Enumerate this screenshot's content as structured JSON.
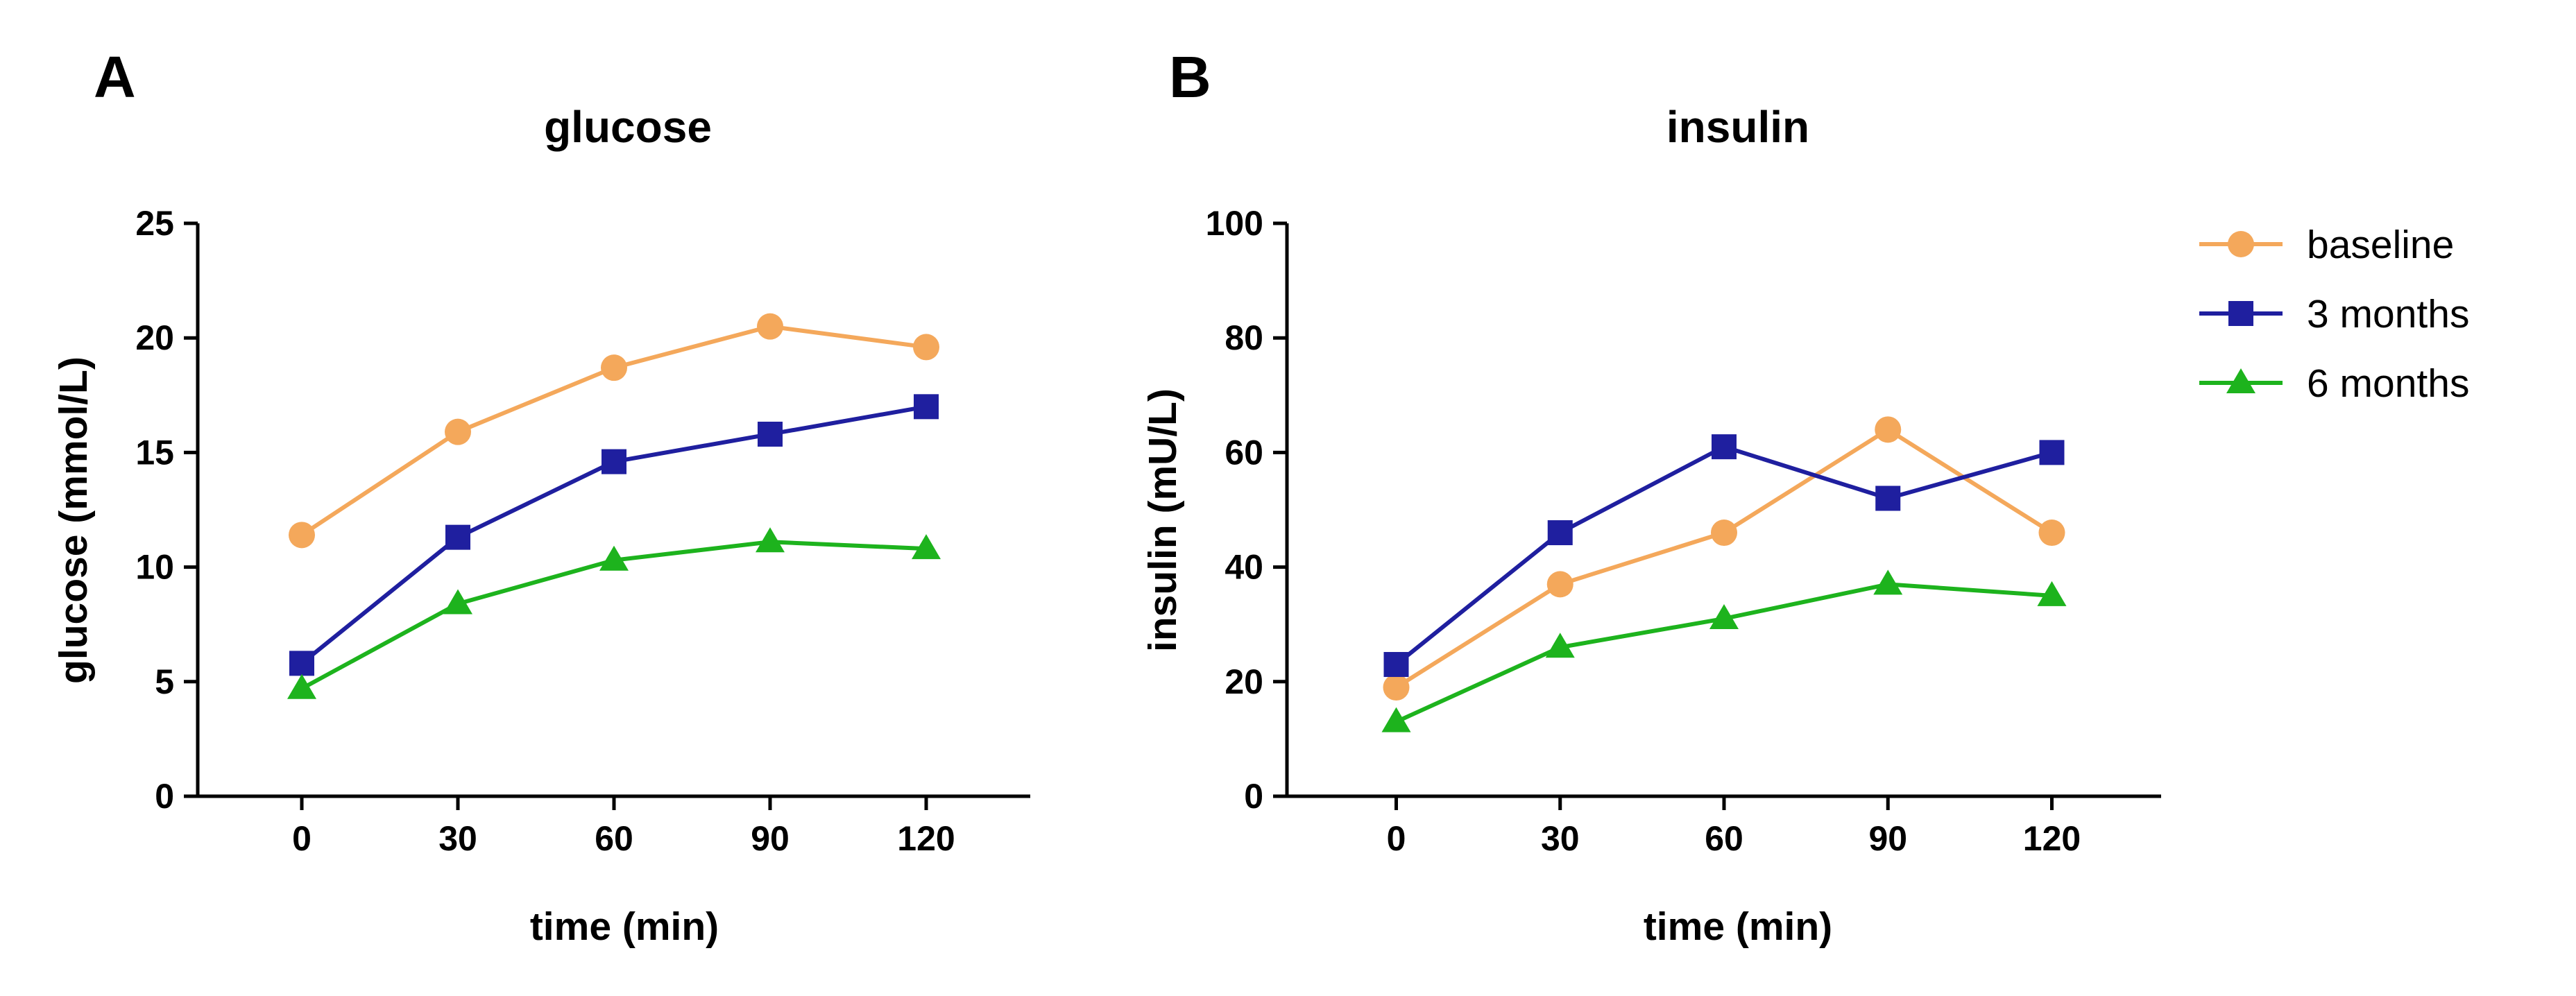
{
  "series_styles": [
    {
      "name": "baseline",
      "color": "#F4A85B",
      "marker": "circle"
    },
    {
      "name": "3 months",
      "color": "#1F1F9F",
      "marker": "square"
    },
    {
      "name": "6 months",
      "color": "#1DB31D",
      "marker": "triangle"
    }
  ],
  "legend": {
    "position": "right",
    "entries": [
      "baseline",
      "3 months",
      "6 months"
    ]
  },
  "chart_data": [
    {
      "panel": "A",
      "type": "line",
      "title": "glucose",
      "xlabel": "time (min)",
      "ylabel": "glucose (mmol/L)",
      "x": [
        0,
        30,
        60,
        90,
        120
      ],
      "xlim": [
        -20,
        140
      ],
      "ylim": [
        0,
        25
      ],
      "yticks": [
        0,
        5,
        10,
        15,
        20,
        25
      ],
      "series": [
        {
          "name": "baseline",
          "values": [
            11.4,
            15.9,
            18.7,
            20.5,
            19.6
          ]
        },
        {
          "name": "3 months",
          "values": [
            5.8,
            11.3,
            14.6,
            15.8,
            17.0
          ]
        },
        {
          "name": "6 months",
          "values": [
            4.7,
            8.4,
            10.3,
            11.1,
            10.8
          ]
        }
      ]
    },
    {
      "panel": "B",
      "type": "line",
      "title": "insulin",
      "xlabel": "time (min)",
      "ylabel": "insulin (mU/L)",
      "x": [
        0,
        30,
        60,
        90,
        120
      ],
      "xlim": [
        -20,
        140
      ],
      "ylim": [
        0,
        100
      ],
      "yticks": [
        0,
        20,
        40,
        60,
        80,
        100
      ],
      "series": [
        {
          "name": "baseline",
          "values": [
            19,
            37,
            46,
            64,
            46
          ]
        },
        {
          "name": "3 months",
          "values": [
            23,
            46,
            61,
            52,
            60
          ]
        },
        {
          "name": "6 months",
          "values": [
            13,
            26,
            31,
            37,
            35
          ]
        }
      ]
    }
  ]
}
